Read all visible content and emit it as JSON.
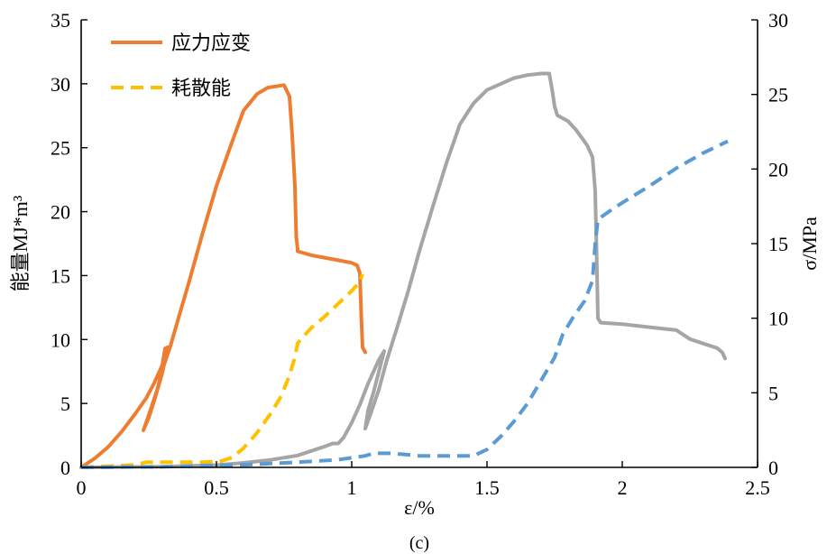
{
  "chart_data": {
    "type": "line",
    "caption": "(c)",
    "xlabel": "ε/%",
    "ylabel_left": "能量MJ*m³",
    "ylabel_right": "σ/MPa",
    "xlim": [
      0,
      2.5
    ],
    "ylim_left": [
      0,
      35
    ],
    "ylim_right": [
      0,
      30
    ],
    "xticks": [
      "0",
      "0.5",
      "1",
      "1.5",
      "2",
      "2.5"
    ],
    "yticks_left": [
      "0",
      "5",
      "10",
      "15",
      "20",
      "25",
      "30",
      "35"
    ],
    "yticks_right": [
      "0",
      "5",
      "10",
      "15",
      "20",
      "25",
      "30"
    ],
    "grid": false,
    "legend_position": "top-left",
    "legend": [
      {
        "label": "应力应变",
        "color": "#ED7D31",
        "style": "solid"
      },
      {
        "label": "耗散能",
        "color": "#FFC000",
        "style": "dashed"
      }
    ],
    "series": [
      {
        "name": "应力应变",
        "axis": "left",
        "color": "#ED7D31",
        "style": "solid",
        "points": [
          [
            0,
            0
          ],
          [
            0.05,
            0.7
          ],
          [
            0.1,
            1.6
          ],
          [
            0.15,
            2.8
          ],
          [
            0.2,
            4.2
          ],
          [
            0.24,
            5.4
          ],
          [
            0.27,
            6.6
          ],
          [
            0.3,
            8.0
          ],
          [
            0.31,
            9.3
          ],
          [
            0.32,
            9.4
          ],
          [
            0.3,
            7.4
          ],
          [
            0.27,
            5.2
          ],
          [
            0.25,
            3.9
          ],
          [
            0.23,
            2.9
          ],
          [
            0.25,
            4.1
          ],
          [
            0.28,
            6.0
          ],
          [
            0.3,
            7.6
          ],
          [
            0.33,
            9.5
          ],
          [
            0.36,
            11.7
          ],
          [
            0.4,
            14.6
          ],
          [
            0.45,
            18.4
          ],
          [
            0.5,
            22.0
          ],
          [
            0.55,
            25.0
          ],
          [
            0.6,
            27.9
          ],
          [
            0.65,
            29.2
          ],
          [
            0.69,
            29.7
          ],
          [
            0.72,
            29.8
          ],
          [
            0.75,
            29.9
          ],
          [
            0.77,
            29.0
          ],
          [
            0.78,
            26.0
          ],
          [
            0.79,
            22.0
          ],
          [
            0.795,
            18.0
          ],
          [
            0.8,
            17.1
          ],
          [
            0.8,
            16.9
          ],
          [
            0.85,
            16.6
          ],
          [
            0.9,
            16.4
          ],
          [
            0.95,
            16.2
          ],
          [
            1.0,
            16.0
          ],
          [
            1.02,
            15.8
          ],
          [
            1.03,
            15.2
          ],
          [
            1.035,
            12.0
          ],
          [
            1.04,
            9.4
          ],
          [
            1.05,
            9.0
          ]
        ]
      },
      {
        "name": "耗散能",
        "axis": "left",
        "color": "#FFC000",
        "style": "dashed",
        "points": [
          [
            0,
            0
          ],
          [
            0.1,
            0.1
          ],
          [
            0.2,
            0.2
          ],
          [
            0.24,
            0.4
          ],
          [
            0.35,
            0.4
          ],
          [
            0.45,
            0.4
          ],
          [
            0.52,
            0.5
          ],
          [
            0.56,
            0.8
          ],
          [
            0.6,
            1.5
          ],
          [
            0.65,
            2.7
          ],
          [
            0.7,
            4.2
          ],
          [
            0.74,
            5.6
          ],
          [
            0.77,
            7.2
          ],
          [
            0.79,
            8.6
          ],
          [
            0.8,
            9.7
          ],
          [
            0.82,
            10.2
          ],
          [
            0.85,
            10.9
          ],
          [
            0.9,
            11.8
          ],
          [
            0.95,
            12.8
          ],
          [
            1.0,
            13.8
          ],
          [
            1.03,
            14.5
          ],
          [
            1.04,
            15.1
          ]
        ]
      },
      {
        "name": "",
        "axis": "right",
        "color": "#A5A5A5",
        "style": "solid",
        "points": [
          [
            0,
            0
          ],
          [
            0.3,
            0.05
          ],
          [
            0.5,
            0.15
          ],
          [
            0.6,
            0.3
          ],
          [
            0.7,
            0.5
          ],
          [
            0.8,
            0.8
          ],
          [
            0.85,
            1.1
          ],
          [
            0.9,
            1.4
          ],
          [
            0.93,
            1.6
          ],
          [
            0.95,
            1.6
          ],
          [
            0.97,
            2.0
          ],
          [
            1.0,
            3.0
          ],
          [
            1.03,
            4.2
          ],
          [
            1.06,
            5.6
          ],
          [
            1.1,
            7.2
          ],
          [
            1.12,
            7.8
          ],
          [
            1.1,
            6.4
          ],
          [
            1.08,
            5.0
          ],
          [
            1.06,
            3.8
          ],
          [
            1.05,
            2.6
          ],
          [
            1.07,
            3.6
          ],
          [
            1.1,
            5.2
          ],
          [
            1.13,
            7.2
          ],
          [
            1.17,
            9.5
          ],
          [
            1.21,
            11.9
          ],
          [
            1.25,
            14.5
          ],
          [
            1.3,
            17.5
          ],
          [
            1.35,
            20.4
          ],
          [
            1.4,
            23.0
          ],
          [
            1.45,
            24.4
          ],
          [
            1.5,
            25.3
          ],
          [
            1.55,
            25.7
          ],
          [
            1.6,
            26.1
          ],
          [
            1.65,
            26.3
          ],
          [
            1.7,
            26.4
          ],
          [
            1.73,
            26.4
          ],
          [
            1.74,
            25.4
          ],
          [
            1.75,
            24.2
          ],
          [
            1.76,
            23.6
          ],
          [
            1.8,
            23.2
          ],
          [
            1.83,
            22.6
          ],
          [
            1.87,
            21.6
          ],
          [
            1.89,
            20.8
          ],
          [
            1.9,
            18.5
          ],
          [
            1.905,
            14.5
          ],
          [
            1.91,
            10.0
          ],
          [
            1.92,
            9.7
          ],
          [
            2.0,
            9.6
          ],
          [
            2.1,
            9.4
          ],
          [
            2.2,
            9.2
          ],
          [
            2.25,
            8.6
          ],
          [
            2.3,
            8.3
          ],
          [
            2.35,
            8.0
          ],
          [
            2.37,
            7.7
          ],
          [
            2.38,
            7.3
          ]
        ]
      },
      {
        "name": "",
        "axis": "left",
        "color": "#5B9BD5",
        "style": "dashed",
        "points": [
          [
            0,
            0
          ],
          [
            0.3,
            0.05
          ],
          [
            0.6,
            0.2
          ],
          [
            0.8,
            0.4
          ],
          [
            0.95,
            0.6
          ],
          [
            1.05,
            0.9
          ],
          [
            1.08,
            1.1
          ],
          [
            1.15,
            1.1
          ],
          [
            1.25,
            0.9
          ],
          [
            1.35,
            0.9
          ],
          [
            1.45,
            0.9
          ],
          [
            1.5,
            1.4
          ],
          [
            1.55,
            2.4
          ],
          [
            1.6,
            3.6
          ],
          [
            1.65,
            5.0
          ],
          [
            1.7,
            6.8
          ],
          [
            1.75,
            8.6
          ],
          [
            1.78,
            10.4
          ],
          [
            1.82,
            11.8
          ],
          [
            1.86,
            13.0
          ],
          [
            1.89,
            14.6
          ],
          [
            1.9,
            17.5
          ],
          [
            1.91,
            19.4
          ],
          [
            1.95,
            20.0
          ],
          [
            2.0,
            20.7
          ],
          [
            2.1,
            22.0
          ],
          [
            2.2,
            23.4
          ],
          [
            2.3,
            24.6
          ],
          [
            2.39,
            25.5
          ]
        ]
      }
    ]
  }
}
